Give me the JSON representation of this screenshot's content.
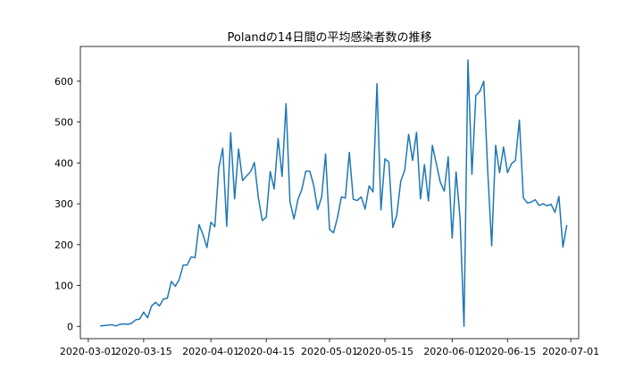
{
  "chart_data": {
    "type": "line",
    "title": "Polandの14日間の平均感染者数の推移",
    "xlabel": "",
    "ylabel": "",
    "x_start": "2020-03-04",
    "x_step_days": 1,
    "xlim": [
      "2020-02-28",
      "2020-07-03"
    ],
    "ylim": [
      -30,
      685
    ],
    "xticks": [
      "2020-03-01",
      "2020-03-15",
      "2020-04-01",
      "2020-04-15",
      "2020-05-01",
      "2020-05-15",
      "2020-06-01",
      "2020-06-15",
      "2020-07-01"
    ],
    "yticks": [
      0,
      100,
      200,
      300,
      400,
      500,
      600
    ],
    "grid": false,
    "line_color": "#1f77b4",
    "series": [
      {
        "values": [
          1,
          2,
          3,
          4,
          1,
          5,
          6,
          5,
          8,
          16,
          18,
          35,
          21,
          50,
          59,
          50,
          67,
          69,
          110,
          98,
          115,
          150,
          150,
          170,
          168,
          249,
          225,
          193,
          255,
          244,
          388,
          436,
          245,
          474,
          312,
          434,
          357,
          368,
          378,
          401,
          315,
          259,
          267,
          379,
          336,
          460,
          367,
          545,
          305,
          263,
          310,
          335,
          380,
          380,
          345,
          286,
          316,
          422,
          237,
          229,
          266,
          317,
          314,
          426,
          311,
          308,
          317,
          287,
          344,
          329,
          594,
          285,
          410,
          402,
          242,
          272,
          355,
          382,
          470,
          406,
          475,
          312,
          396,
          307,
          443,
          398,
          353,
          331,
          415,
          216,
          378,
          265,
          0,
          652,
          372,
          565,
          575,
          600,
          380,
          197,
          443,
          376,
          439,
          376,
          398,
          406,
          505,
          315,
          302,
          304,
          310,
          296,
          300,
          295,
          299,
          279,
          318,
          194,
          248
        ]
      }
    ]
  }
}
